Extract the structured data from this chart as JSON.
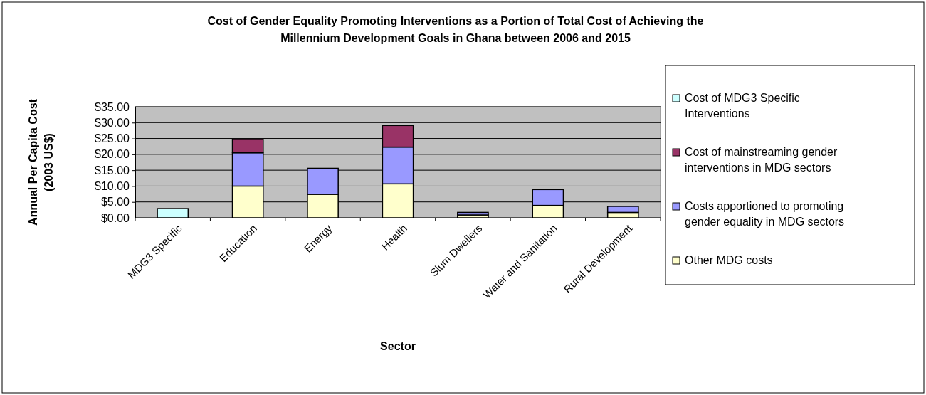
{
  "chart_data": {
    "type": "bar",
    "title": "Cost of Gender Equality Promoting Interventions as a Portion of Total Cost of Achieving the Millennium Development Goals in Ghana between 2006 and 2015",
    "xlabel": "Sector",
    "ylabel": "Annual Per Capita Cost (2003 US$)",
    "categories": [
      "MDG3 Specific",
      "Education",
      "Energy",
      "Health",
      "Slum Dwellers",
      "Water and Sanitation",
      "Rural Development"
    ],
    "stacked": true,
    "series": [
      {
        "name": "Other MDG costs",
        "color": "#ffffcc",
        "values": [
          null,
          10.0,
          7.4,
          10.7,
          0.9,
          3.9,
          1.7
        ]
      },
      {
        "name": "Costs apportioned to promoting gender equality in MDG sectors",
        "color": "#9999ff",
        "values": [
          null,
          10.5,
          8.2,
          11.6,
          0.8,
          5.0,
          1.9
        ]
      },
      {
        "name": "Cost of mainstreaming gender interventions in MDG sectors",
        "color": "#993366",
        "values": [
          null,
          4.2,
          null,
          6.8,
          null,
          null,
          null
        ]
      },
      {
        "name": "Cost of MDG3 Specific Interventions",
        "color": "#ccffff",
        "values": [
          2.9,
          null,
          null,
          null,
          null,
          null,
          null
        ]
      }
    ],
    "ylim": [
      0,
      35
    ],
    "yticks": [
      {
        "value": 0,
        "label": "$0.00"
      },
      {
        "value": 5,
        "label": "$5.00"
      },
      {
        "value": 10,
        "label": "$10.00"
      },
      {
        "value": 15,
        "label": "$15.00"
      },
      {
        "value": 20,
        "label": "$20.00"
      },
      {
        "value": 25,
        "label": "$25.00"
      },
      {
        "value": 30,
        "label": "$30.00"
      },
      {
        "value": 35,
        "label": "$35.00"
      }
    ],
    "grid": "y",
    "legend": "right"
  }
}
